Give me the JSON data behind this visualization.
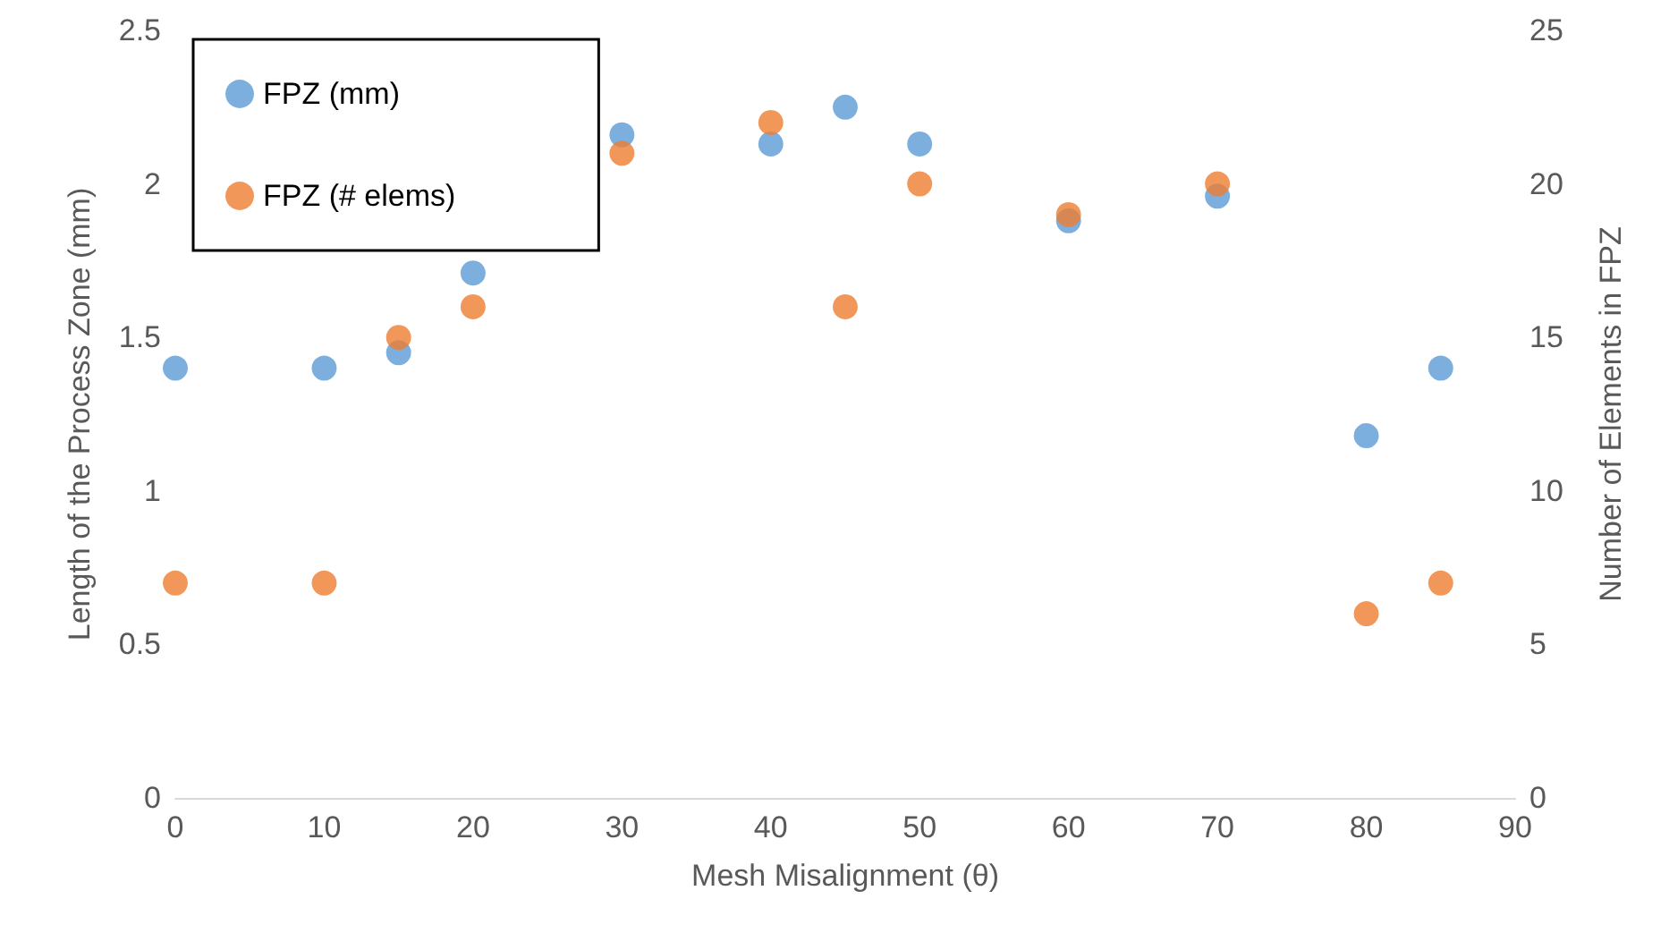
{
  "chart_data": {
    "type": "scatter",
    "xlabel": "Mesh Misalignment (θ)",
    "ylabel": "Length of the Process Zone (mm)",
    "y2label": "Number of Elements in FPZ",
    "x": [
      0,
      10,
      15,
      20,
      30,
      40,
      45,
      50,
      60,
      70,
      80,
      85
    ],
    "series": [
      {
        "name": "FPZ (mm)",
        "color": "#5b9bd5",
        "values": [
          1.4,
          1.4,
          1.45,
          1.71,
          2.16,
          2.13,
          2.25,
          2.13,
          1.88,
          1.96,
          1.18,
          1.4
        ]
      },
      {
        "name": "FPZ (# elems)",
        "color": "#ed7d31",
        "axis": "y2",
        "values": [
          7,
          7,
          15,
          16,
          21,
          22,
          16,
          20,
          19,
          20,
          6,
          7
        ]
      }
    ],
    "xlim": [
      0,
      90
    ],
    "xticks": [
      0,
      10,
      20,
      30,
      40,
      50,
      60,
      70,
      80,
      90
    ],
    "ylim": [
      0,
      2.5
    ],
    "yticks": [
      0,
      0.5,
      1,
      1.5,
      2,
      2.5
    ],
    "y2lim": [
      0,
      25
    ],
    "y2ticks": [
      0,
      5,
      10,
      15,
      20,
      25
    ],
    "grid": false,
    "legend": "top left",
    "marker": "circle"
  }
}
